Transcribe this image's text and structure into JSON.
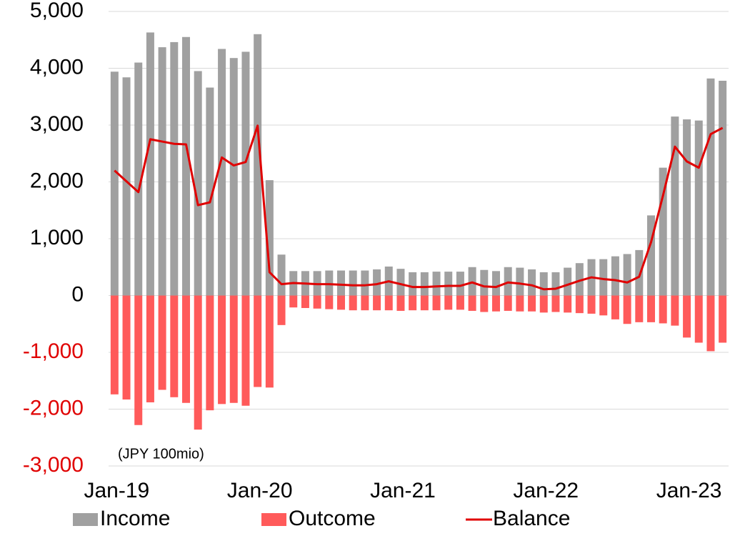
{
  "chart_data": {
    "type": "bar_line",
    "annotation": "(JPY 100mio)",
    "categories": [
      "Jan-19",
      null,
      null,
      null,
      null,
      null,
      null,
      null,
      null,
      null,
      null,
      null,
      "Jan-20",
      null,
      null,
      null,
      null,
      null,
      null,
      null,
      null,
      null,
      null,
      null,
      "Jan-21",
      null,
      null,
      null,
      null,
      null,
      null,
      null,
      null,
      null,
      null,
      null,
      "Jan-22",
      null,
      null,
      null,
      null,
      null,
      null,
      null,
      null,
      null,
      null,
      null,
      "Jan-23",
      null,
      null,
      null
    ],
    "series": [
      {
        "name": "Income",
        "kind": "bar",
        "color": "#a0a0a0",
        "values": [
          3940,
          3840,
          4100,
          4630,
          4370,
          4460,
          4550,
          3950,
          3660,
          4340,
          4180,
          4290,
          4600,
          2030,
          720,
          430,
          430,
          430,
          440,
          440,
          440,
          440,
          460,
          510,
          470,
          410,
          410,
          420,
          420,
          420,
          500,
          450,
          430,
          500,
          490,
          460,
          410,
          410,
          490,
          570,
          640,
          640,
          690,
          730,
          800,
          1410,
          2250,
          3150,
          3100,
          3080,
          3820,
          3780
        ]
      },
      {
        "name": "Outcome",
        "kind": "bar",
        "color": "#ff5a5a",
        "values": [
          -1740,
          -1830,
          -2280,
          -1880,
          -1660,
          -1790,
          -1890,
          -2360,
          -2020,
          -1910,
          -1890,
          -1940,
          -1610,
          -1620,
          -520,
          -210,
          -220,
          -230,
          -240,
          -250,
          -260,
          -260,
          -260,
          -260,
          -270,
          -260,
          -260,
          -260,
          -250,
          -250,
          -270,
          -290,
          -280,
          -270,
          -280,
          -280,
          -300,
          -290,
          -300,
          -310,
          -320,
          -350,
          -420,
          -500,
          -470,
          -470,
          -490,
          -530,
          -740,
          -830,
          -980,
          -830
        ]
      },
      {
        "name": "Balance",
        "kind": "line",
        "color": "#e00000",
        "values": [
          2200,
          2010,
          1820,
          2750,
          2710,
          2670,
          2660,
          1590,
          1640,
          2430,
          2290,
          2350,
          2990,
          410,
          200,
          220,
          210,
          200,
          200,
          190,
          180,
          180,
          200,
          250,
          200,
          150,
          150,
          160,
          170,
          170,
          230,
          160,
          150,
          230,
          210,
          180,
          110,
          120,
          190,
          260,
          320,
          290,
          270,
          230,
          330,
          940,
          1760,
          2620,
          2360,
          2250,
          2840,
          2950
        ]
      }
    ],
    "ylim": [
      -3000,
      5000
    ],
    "yticks": [
      {
        "value": -3000,
        "label": "-3,000"
      },
      {
        "value": -2000,
        "label": "-2,000"
      },
      {
        "value": -1000,
        "label": "-1,000"
      },
      0,
      {
        "value": 1000,
        "label": "1,000"
      },
      {
        "value": 2000,
        "label": "2,000"
      },
      {
        "value": 3000,
        "label": "3,000"
      },
      {
        "value": 4000,
        "label": "4,000"
      },
      {
        "value": 5000,
        "label": "5,000"
      }
    ],
    "grid": true
  }
}
